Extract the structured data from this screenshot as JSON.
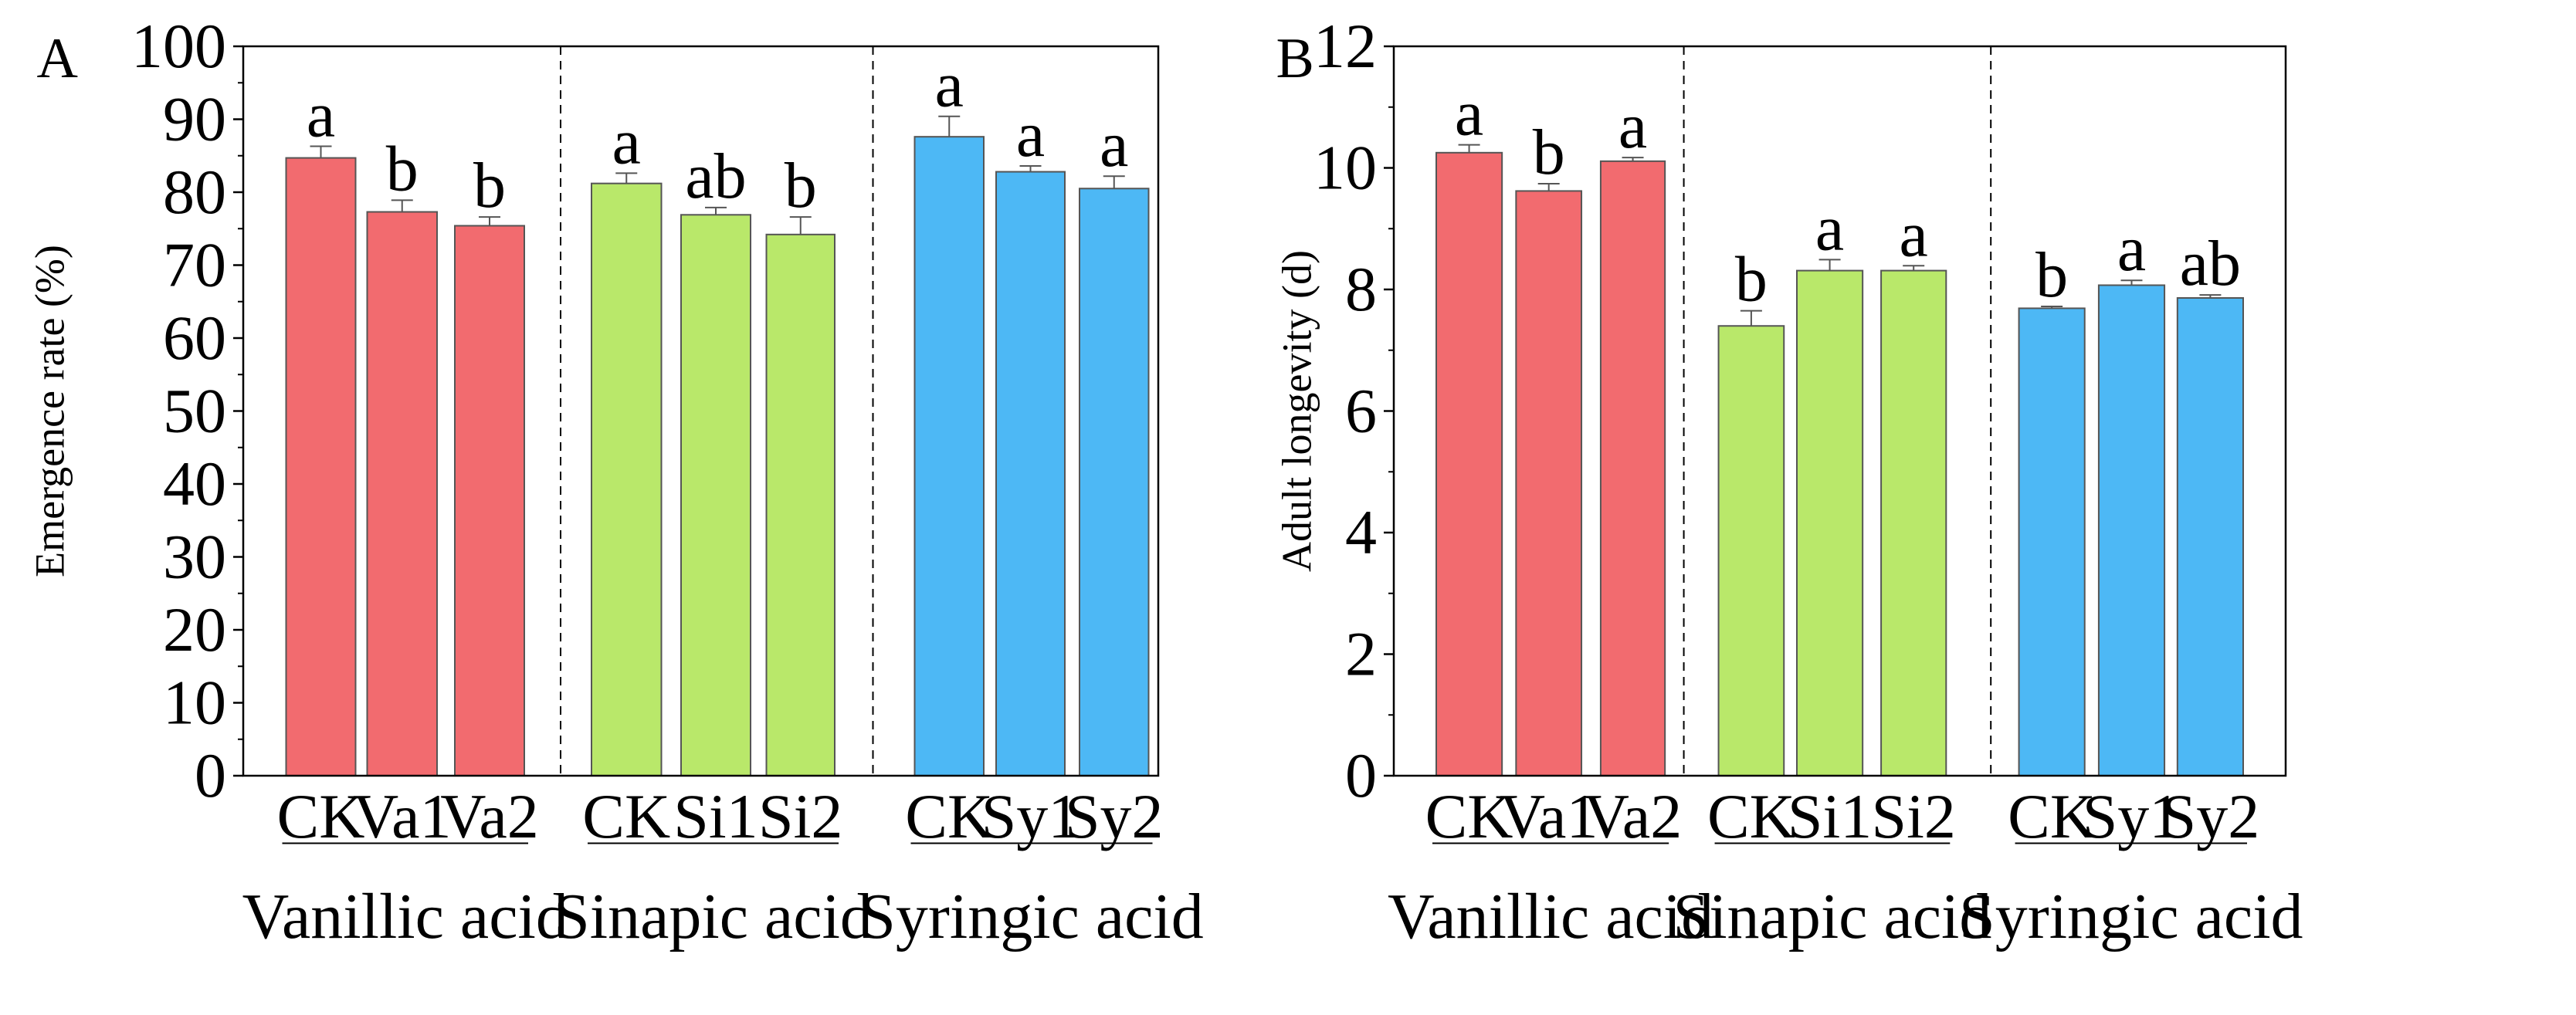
{
  "chart_data": [
    {
      "panel": "A",
      "type": "bar",
      "ylabel": "Emergence rate (%)",
      "ylim": [
        0,
        100
      ],
      "yticks": [
        0,
        10,
        20,
        30,
        40,
        50,
        60,
        70,
        80,
        90,
        100
      ],
      "groups": [
        {
          "name": "Vanillic acid",
          "color": "#f26b6f",
          "categories": [
            "CK",
            "Va1",
            "Va2"
          ],
          "values": [
            84.7,
            77.3,
            75.4
          ],
          "errors": [
            1.6,
            1.6,
            1.2
          ],
          "letters": [
            "a",
            "b",
            "b"
          ]
        },
        {
          "name": "Sinapic acid",
          "color": "#b9e86a",
          "categories": [
            "CK",
            "Si1",
            "Si2"
          ],
          "values": [
            81.2,
            76.9,
            74.2
          ],
          "errors": [
            1.4,
            1.0,
            2.4
          ],
          "letters": [
            "a",
            "ab",
            "b"
          ]
        },
        {
          "name": "Syringic acid",
          "color": "#4db8f5",
          "categories": [
            "CK",
            "Sy1",
            "Sy2"
          ],
          "values": [
            87.6,
            82.8,
            80.5
          ],
          "errors": [
            2.8,
            0.8,
            1.7
          ],
          "letters": [
            "a",
            "a",
            "a"
          ]
        }
      ]
    },
    {
      "panel": "B",
      "type": "bar",
      "ylabel": "Adult longevity (d)",
      "ylim": [
        0,
        12
      ],
      "yticks": [
        0,
        2,
        4,
        6,
        8,
        10,
        12
      ],
      "groups": [
        {
          "name": "Vanillic acid",
          "color": "#f26b6f",
          "categories": [
            "CK",
            "Va1",
            "Va2"
          ],
          "values": [
            10.25,
            9.62,
            10.11
          ],
          "errors": [
            0.13,
            0.12,
            0.06
          ],
          "letters": [
            "a",
            "b",
            "a"
          ]
        },
        {
          "name": "Sinapic acid",
          "color": "#b9e86a",
          "categories": [
            "CK",
            "Si1",
            "Si2"
          ],
          "values": [
            7.4,
            8.31,
            8.31
          ],
          "errors": [
            0.25,
            0.18,
            0.08
          ],
          "letters": [
            "b",
            "a",
            "a"
          ]
        },
        {
          "name": "Syringic acid",
          "color": "#4db8f5",
          "categories": [
            "CK",
            "Sy1",
            "Sy2"
          ],
          "values": [
            7.69,
            8.07,
            7.86
          ],
          "errors": [
            0.03,
            0.08,
            0.05
          ],
          "letters": [
            "b",
            "a",
            "ab"
          ]
        }
      ]
    }
  ]
}
